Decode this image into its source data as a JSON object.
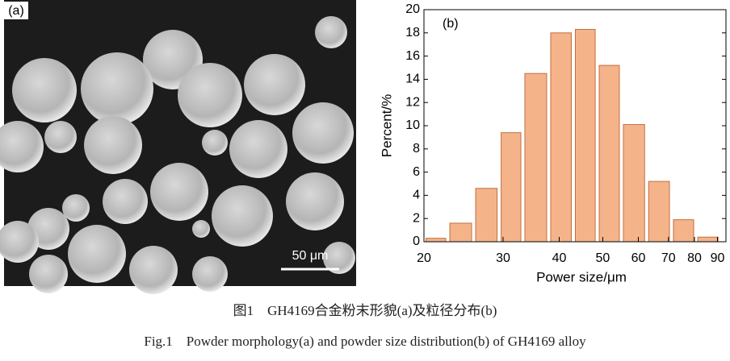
{
  "image": {
    "label": "(a)",
    "scale_bar": "50 μm"
  },
  "chart_data": {
    "type": "histogram",
    "label": "(b)",
    "x_label": "Power size/μm",
    "y_label": "Percent/%",
    "bins": [
      20,
      22.6,
      25.8,
      29.4,
      33.2,
      37.9,
      43,
      48.6,
      55,
      62.6,
      71.1,
      80.5,
      91.2
    ],
    "values": [
      0.3,
      1.6,
      4.6,
      9.4,
      14.5,
      18.0,
      18.3,
      15.2,
      10.1,
      5.2,
      1.9,
      0.4
    ],
    "color": "#f5b38a",
    "edge_color": "#c0703e",
    "xscale": "log",
    "xlim": [
      20,
      94
    ],
    "xticks": [
      20,
      30,
      40,
      50,
      60,
      70,
      80,
      90
    ],
    "ylim": [
      0,
      20
    ],
    "yticks": [
      0,
      2,
      4,
      6,
      8,
      10,
      12,
      14,
      16,
      18,
      20
    ]
  },
  "caption": {
    "zh": "图1　GH4169合金粉末形貌(a)及粒径分布(b)",
    "en": "Fig.1　Powder morphology(a) and powder size distribution(b) of GH4169 alloy"
  }
}
